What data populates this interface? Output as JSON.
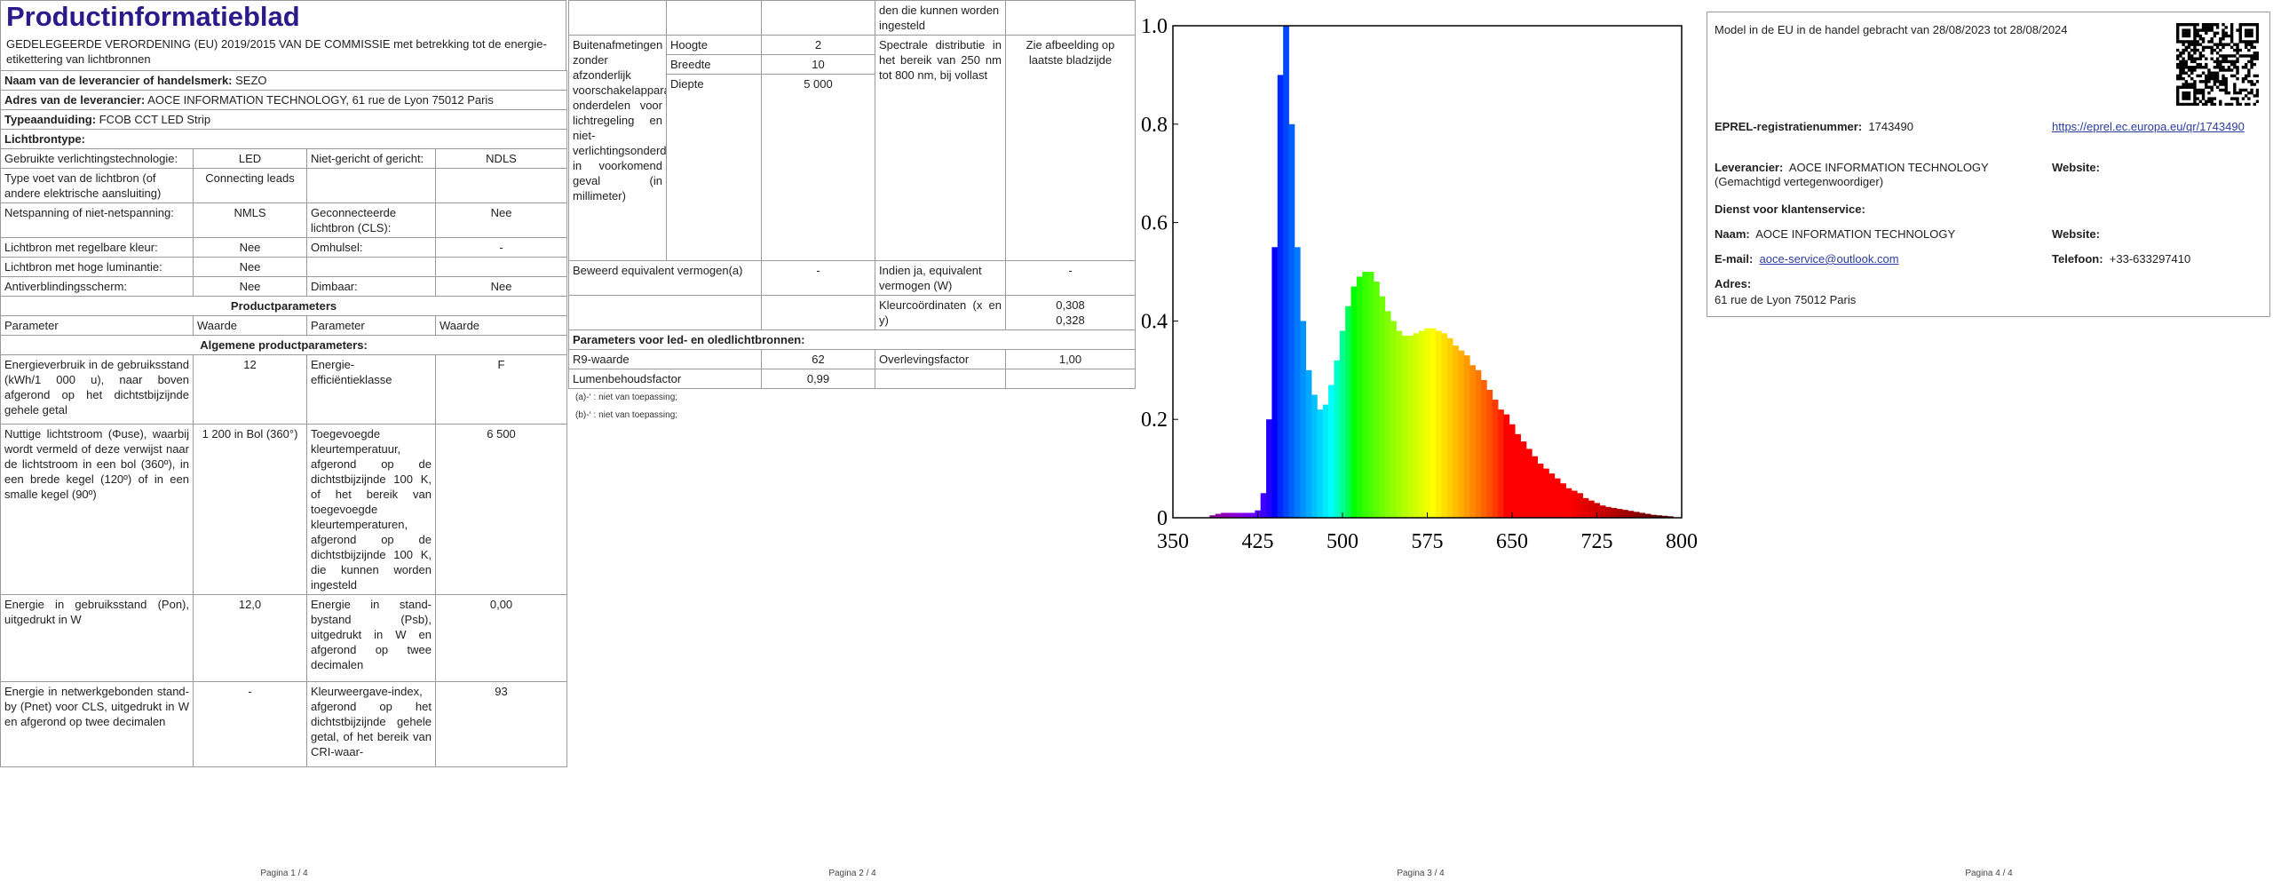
{
  "page1": {
    "title": "Productinformatieblad",
    "regulation": "GEDELEGEERDE VERORDENING (EU) 2019/2015 VAN DE COMMISSIE met betrekking tot de energie-etikettering van lichtbronnen",
    "supplier_name": {
      "label": "Naam van de leverancier of handelsmerk:",
      "value": "SEZO"
    },
    "supplier_address": {
      "label": "Adres van de leverancier:",
      "value": "AOCE INFORMATION TECHNOLOGY, 61 rue de Lyon 75012 Paris"
    },
    "model": {
      "label": "Typeaanduiding:",
      "value": "FCOB CCT LED Strip"
    },
    "light_source_type": "Lichtbrontype:",
    "type_rows": [
      [
        "Gebruikte verlichtingstechnologie:",
        "LED",
        "Niet-gericht of gericht:",
        "NDLS"
      ],
      [
        "Type voet van de lichtbron (of andere elektrische aansluiting)",
        "Connecting leads"
      ],
      [
        "Netspanning of niet-netspanning:",
        "NMLS",
        "Geconnecteerde lichtbron (CLS):",
        "Nee"
      ],
      [
        "Lichtbron met regelbare kleur:",
        "Nee",
        "Omhulsel:",
        "-"
      ],
      [
        "Lichtbron met hoge luminantie:",
        "Nee"
      ],
      [
        "Antiverblindingsscherm:",
        "Nee",
        "Dimbaar:",
        "Nee"
      ]
    ],
    "product_params": "Productparameters",
    "header": [
      "Parameter",
      "Waarde",
      "Parameter",
      "Waarde"
    ],
    "general": "Algemene productparameters:",
    "param_rows": [
      [
        "Energieverbruik in de gebruiksstand (kWh/1 000 u), naar boven afgerond op het dichtstbijzijnde gehele getal",
        "12",
        "Energie-efficiëntieklasse",
        "F"
      ],
      [
        "Nuttige lichtstroom (Φuse), waarbij wordt vermeld of deze verwijst naar de lichtstroom in een bol (360º), in een brede kegel (120º) of in een smalle kegel (90º)",
        "1 200 in Bol (360°)",
        "Toegevoegde kleurtemperatuur, afgerond op de dichtstbijzijnde 100 K, of het bereik van toegevoegde kleurtemperaturen, afgerond op de dichtstbijzijnde 100 K, die kunnen worden ingesteld",
        "6 500"
      ],
      [
        "Energie in gebruiksstand (Pon), uitgedrukt in W",
        "12,0",
        "Energie in stand-bystand (Psb), uitgedrukt in W en afgerond op twee decimalen",
        "0,00"
      ],
      [
        "Energie in netwerkgebonden stand-by (Pnet) voor CLS, uitgedrukt in W en afgerond op twee decimalen",
        "-",
        "Kleurweergave-index, afgerond op het dichtstbijzijnde gehele getal, of het bereik van CRI-waar-",
        "93"
      ]
    ],
    "page_number": "Pagina 1 / 4"
  },
  "page2": {
    "continued": "den die kunnen worden ingesteld",
    "dimensions_label": "Buitenafmetingen zonder afzonderlijk voorschakelapparaat, onderdelen voor lichtregeling en niet-verlichtingsonderdelen, in voorkomend geval (in millimeter)",
    "dimensions": [
      [
        "Hoogte",
        "2"
      ],
      [
        "Breedte",
        "10"
      ],
      [
        "Diepte",
        "5 000"
      ]
    ],
    "spectral_label": "Spectrale distributie in het bereik van 250 nm tot 800 nm, bij vollast",
    "spectral_value": "Zie afbeelding op laatste bladzijde",
    "equivalent": [
      "Beweerd equivalent vermogen(a)",
      "-",
      "Indien ja, equivalent vermogen (W)",
      "-"
    ],
    "chromaticity": {
      "label": "Kleurcoördinaten (x en y)",
      "x": "0,308",
      "y": "0,328"
    },
    "led_header": "Parameters voor led- en oledlichtbronnen:",
    "led_rows": [
      [
        "R9-waarde",
        "62",
        "Overlevingsfactor",
        "1,00"
      ],
      [
        "Lumenbehoudsfactor",
        "0,99"
      ]
    ],
    "footnotes": [
      "(a)-‘ : niet van toepassing;",
      "(b)-‘ : niet van toepassing;"
    ],
    "page_number": "Pagina 2 / 4"
  },
  "chart_data": {
    "type": "bar",
    "x": [
      385,
      390,
      395,
      400,
      405,
      410,
      415,
      420,
      425,
      430,
      435,
      440,
      445,
      450,
      455,
      460,
      465,
      470,
      475,
      480,
      485,
      490,
      495,
      500,
      505,
      510,
      515,
      520,
      525,
      530,
      535,
      540,
      545,
      550,
      555,
      560,
      565,
      570,
      575,
      580,
      585,
      590,
      595,
      600,
      605,
      610,
      615,
      620,
      625,
      630,
      635,
      640,
      645,
      650,
      655,
      660,
      665,
      670,
      675,
      680,
      685,
      690,
      695,
      700,
      705,
      710,
      715,
      720,
      725,
      730,
      735,
      740,
      745,
      750,
      755,
      760,
      765,
      770,
      775,
      780,
      785,
      790
    ],
    "values": [
      0.005,
      0.008,
      0.01,
      0.01,
      0.01,
      0.01,
      0.01,
      0.01,
      0.015,
      0.05,
      0.2,
      0.55,
      0.9,
      1.0,
      0.8,
      0.55,
      0.4,
      0.3,
      0.25,
      0.22,
      0.23,
      0.27,
      0.32,
      0.38,
      0.43,
      0.47,
      0.49,
      0.5,
      0.5,
      0.48,
      0.45,
      0.42,
      0.4,
      0.38,
      0.37,
      0.37,
      0.375,
      0.38,
      0.385,
      0.385,
      0.38,
      0.375,
      0.365,
      0.35,
      0.34,
      0.33,
      0.31,
      0.3,
      0.28,
      0.26,
      0.24,
      0.22,
      0.21,
      0.19,
      0.17,
      0.155,
      0.14,
      0.125,
      0.11,
      0.1,
      0.09,
      0.08,
      0.07,
      0.06,
      0.055,
      0.05,
      0.04,
      0.035,
      0.03,
      0.025,
      0.022,
      0.02,
      0.018,
      0.016,
      0.014,
      0.012,
      0.01,
      0.008,
      0.006,
      0.005,
      0.004,
      0.003
    ],
    "xlim": [
      350,
      800
    ],
    "ylim": [
      0,
      1
    ],
    "xticks": [
      350,
      425,
      500,
      575,
      650,
      725,
      800
    ],
    "yticks": [
      0,
      0.2,
      0.4,
      0.6,
      0.8,
      {
        "value": 1,
        "label": "1.0"
      }
    ],
    "color": "spectrum",
    "grid": false
  },
  "page3": {
    "page_number": "Pagina 3 / 4"
  },
  "page4": {
    "model_period": "Model in de EU in de handel gebracht van 28/08/2023 tot 28/08/2024",
    "eprel": {
      "label": "EPREL-registratienummer:",
      "value": "1743490",
      "link": "https://eprel.ec.europa.eu/qr/1743490"
    },
    "supplier": {
      "label": "Leverancier:",
      "value": "AOCE INFORMATION TECHNOLOGY (Gemachtigd vertegenwoordiger)"
    },
    "website_label": "Website:",
    "service": "Dienst voor klantenservice:",
    "name": {
      "label": "Naam:",
      "value": "AOCE INFORMATION TECHNOLOGY"
    },
    "website2_label": "Website:",
    "email": {
      "label": "E-mail:",
      "value": "aoce-service@outlook.com"
    },
    "phone": {
      "label": "Telefoon:",
      "value": "+33-633297410"
    },
    "address": {
      "label": "Adres:",
      "value": "61 rue de Lyon 75012 Paris"
    },
    "page_number": "Pagina 4 / 4"
  }
}
